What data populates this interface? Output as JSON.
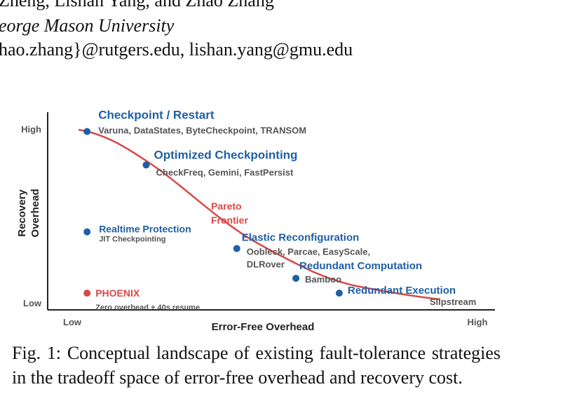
{
  "header": {
    "authors_line": "Zheng, Lishan Yang, and Zhao Zhang",
    "affiliation_line": "eorge Mason University",
    "emails_line": "hao.zhang}@rutgers.edu, lishan.yang@gmu.edu"
  },
  "figure": {
    "chart_data": {
      "type": "scatter",
      "xlabel": "Error-Free Overhead",
      "ylabel_lines": [
        "Recovery",
        "Overhead"
      ],
      "x_ticks": [
        "Low",
        "High"
      ],
      "y_ticks": [
        "High",
        "Low"
      ],
      "curve_label_lines": [
        "Pareto",
        "Frontier"
      ],
      "points": [
        {
          "name": "Checkpoint / Restart",
          "examples": [
            "Varuna, DataStates, ByteCheckpoint, TRANSOM"
          ],
          "x": 0.1,
          "y": 0.96,
          "on_frontier": true,
          "highlight": false
        },
        {
          "name": "Optimized Checkpointing",
          "examples": [
            "CheckFreq, Gemini, FastPersist"
          ],
          "x": 0.25,
          "y": 0.78,
          "on_frontier": true,
          "highlight": false
        },
        {
          "name": "Realtime Protection",
          "examples": [
            "JIT Checkpointing"
          ],
          "x": 0.1,
          "y": 0.42,
          "on_frontier": false,
          "highlight": false
        },
        {
          "name": "Elastic Reconfiguration",
          "examples": [
            "Oobleck, Parcae, EasyScale,",
            "DLRover"
          ],
          "x": 0.48,
          "y": 0.33,
          "on_frontier": true,
          "highlight": false
        },
        {
          "name": "Redundant Computation",
          "examples": [
            "Bamboo"
          ],
          "x": 0.63,
          "y": 0.17,
          "on_frontier": true,
          "highlight": false
        },
        {
          "name": "Redundant Execution",
          "examples": [
            "Slipstream"
          ],
          "x": 0.74,
          "y": 0.09,
          "on_frontier": true,
          "highlight": false
        },
        {
          "name": "PHOENIX",
          "examples": [
            "Zero overhead + 40s resume"
          ],
          "x": 0.1,
          "y": 0.09,
          "on_frontier": false,
          "highlight": true
        }
      ]
    },
    "colors": {
      "point": "#1f5fa6",
      "label": "#1f5fa6",
      "example_text": "#555555",
      "frontier": "#d94848",
      "highlight": "#d94848",
      "axis": "#222222"
    }
  },
  "caption": "Fig. 1: Conceptual landscape of existing fault-tolerance strategies in the tradeoff space of error-free overhead and recovery cost."
}
